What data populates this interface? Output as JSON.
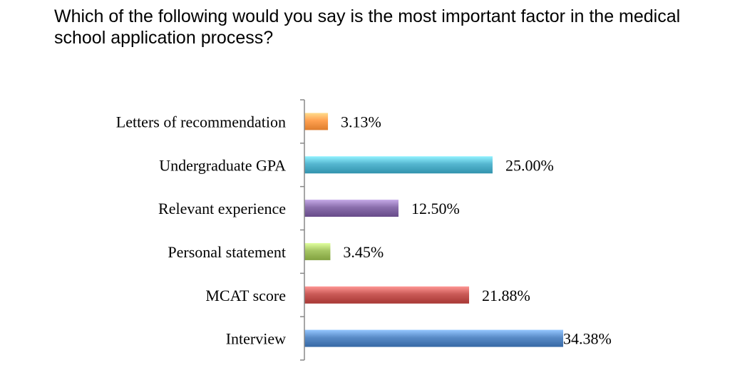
{
  "title": "Which of the following would you say is the most important factor in the medical school application process?",
  "chart_data": {
    "type": "bar",
    "orientation": "horizontal",
    "categories": [
      "Letters of recommendation",
      "Undergraduate GPA",
      "Relevant experience",
      "Personal statement",
      "MCAT score",
      "Interview"
    ],
    "values": [
      3.13,
      25.0,
      12.5,
      3.45,
      21.88,
      34.38
    ],
    "value_labels": [
      "3.13%",
      "25.00%",
      "12.50%",
      "3.45%",
      "21.88%",
      "34.38%"
    ],
    "colors": [
      "#f79646",
      "#4bacc6",
      "#8064a2",
      "#9bbb59",
      "#c0504d",
      "#4f81bd"
    ],
    "xlim": [
      0,
      34.38
    ],
    "grid": false,
    "legend": "none"
  }
}
